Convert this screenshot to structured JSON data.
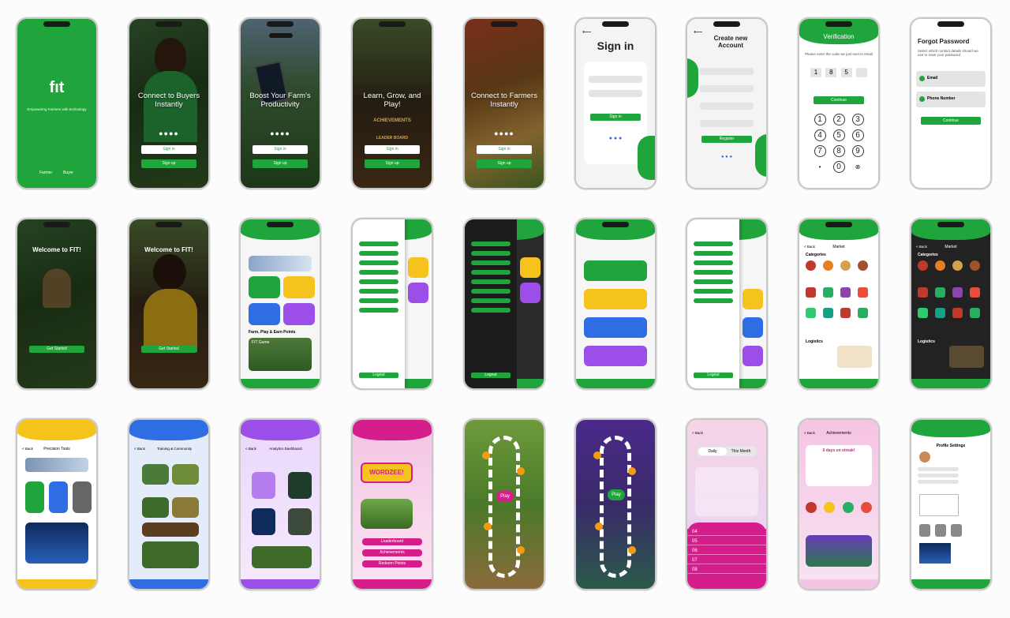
{
  "row1": {
    "splash": {
      "tagline": "Empowering Farmers with technology",
      "left": "Farmer",
      "right": "Buyer"
    },
    "onboard1": {
      "title": "Connect to Buyers Instantly",
      "sign_in": "Sign in",
      "sign_up": "Sign up"
    },
    "onboard2": {
      "title": "Boost Your Farm's Productivity",
      "sign_in": "Sign in",
      "sign_up": "Sign up"
    },
    "onboard3": {
      "title": "Learn, Grow, and Play!",
      "sub1": "ACHIEVEMENTS",
      "sub2": "LEADER BOARD",
      "sign_in": "Sign in",
      "sign_up": "Sign up"
    },
    "onboard4": {
      "title": "Connect to Farmers Instantly",
      "sign_in": "Sign in",
      "sign_up": "Sign up"
    },
    "signin": {
      "title": "Sign in",
      "button": "Sign in"
    },
    "create": {
      "title": "Create new Account",
      "button": "Register"
    },
    "verify": {
      "title": "Verification",
      "info": "Please enter the code we just sent to email",
      "code": [
        "1",
        "8",
        "5",
        ""
      ],
      "button": "Continue",
      "keys": [
        "1",
        "2",
        "3",
        "4",
        "5",
        "6",
        "7",
        "8",
        "9",
        "",
        "0",
        ""
      ]
    },
    "forgot": {
      "title": "Forgot Password",
      "info": "Select which contact details should we use to reset your password",
      "opt1": "Email",
      "opt2": "Phone Number",
      "button": "Continue"
    }
  },
  "row2": {
    "welcome1": {
      "title": "Welcome to FIT!",
      "button": "Get Started"
    },
    "welcome2": {
      "title": "Welcome to FIT!",
      "button": "Get Started"
    },
    "home": {
      "section": "Farm, Play & Earn Points",
      "game": "FIT Game"
    },
    "drawer_logout": "Logout",
    "market": {
      "title": "Market",
      "back": "< Back",
      "categories": "Categories",
      "logistics": "Logistics"
    }
  },
  "row3": {
    "precision": {
      "title": "Precision Tools",
      "back": "< Back"
    },
    "training": {
      "title": "Training & Community",
      "back": "< Back"
    },
    "analytics": {
      "title": "Analytics Dashboard",
      "back": "< Back"
    },
    "wordzee": {
      "logo": "WORDZEE!",
      "b1": "Leaderboard",
      "b2": "Achievements",
      "b3": "Redeem Points"
    },
    "leaderboard": {
      "back": "< Back",
      "tab1": "Daily",
      "tab2": "This Month",
      "rows": [
        "04",
        "05",
        "06",
        "07",
        "08"
      ]
    },
    "achievements": {
      "back": "< Back",
      "title": "Achievements",
      "streak": "6 days on streak!"
    },
    "profile": {
      "title": "Profile Settings"
    }
  },
  "colors": {
    "brand": "#1fa53b",
    "yellow": "#f6c21c",
    "blue": "#2e6de3",
    "purple": "#9b4fe8",
    "pink": "#d61d8c"
  }
}
